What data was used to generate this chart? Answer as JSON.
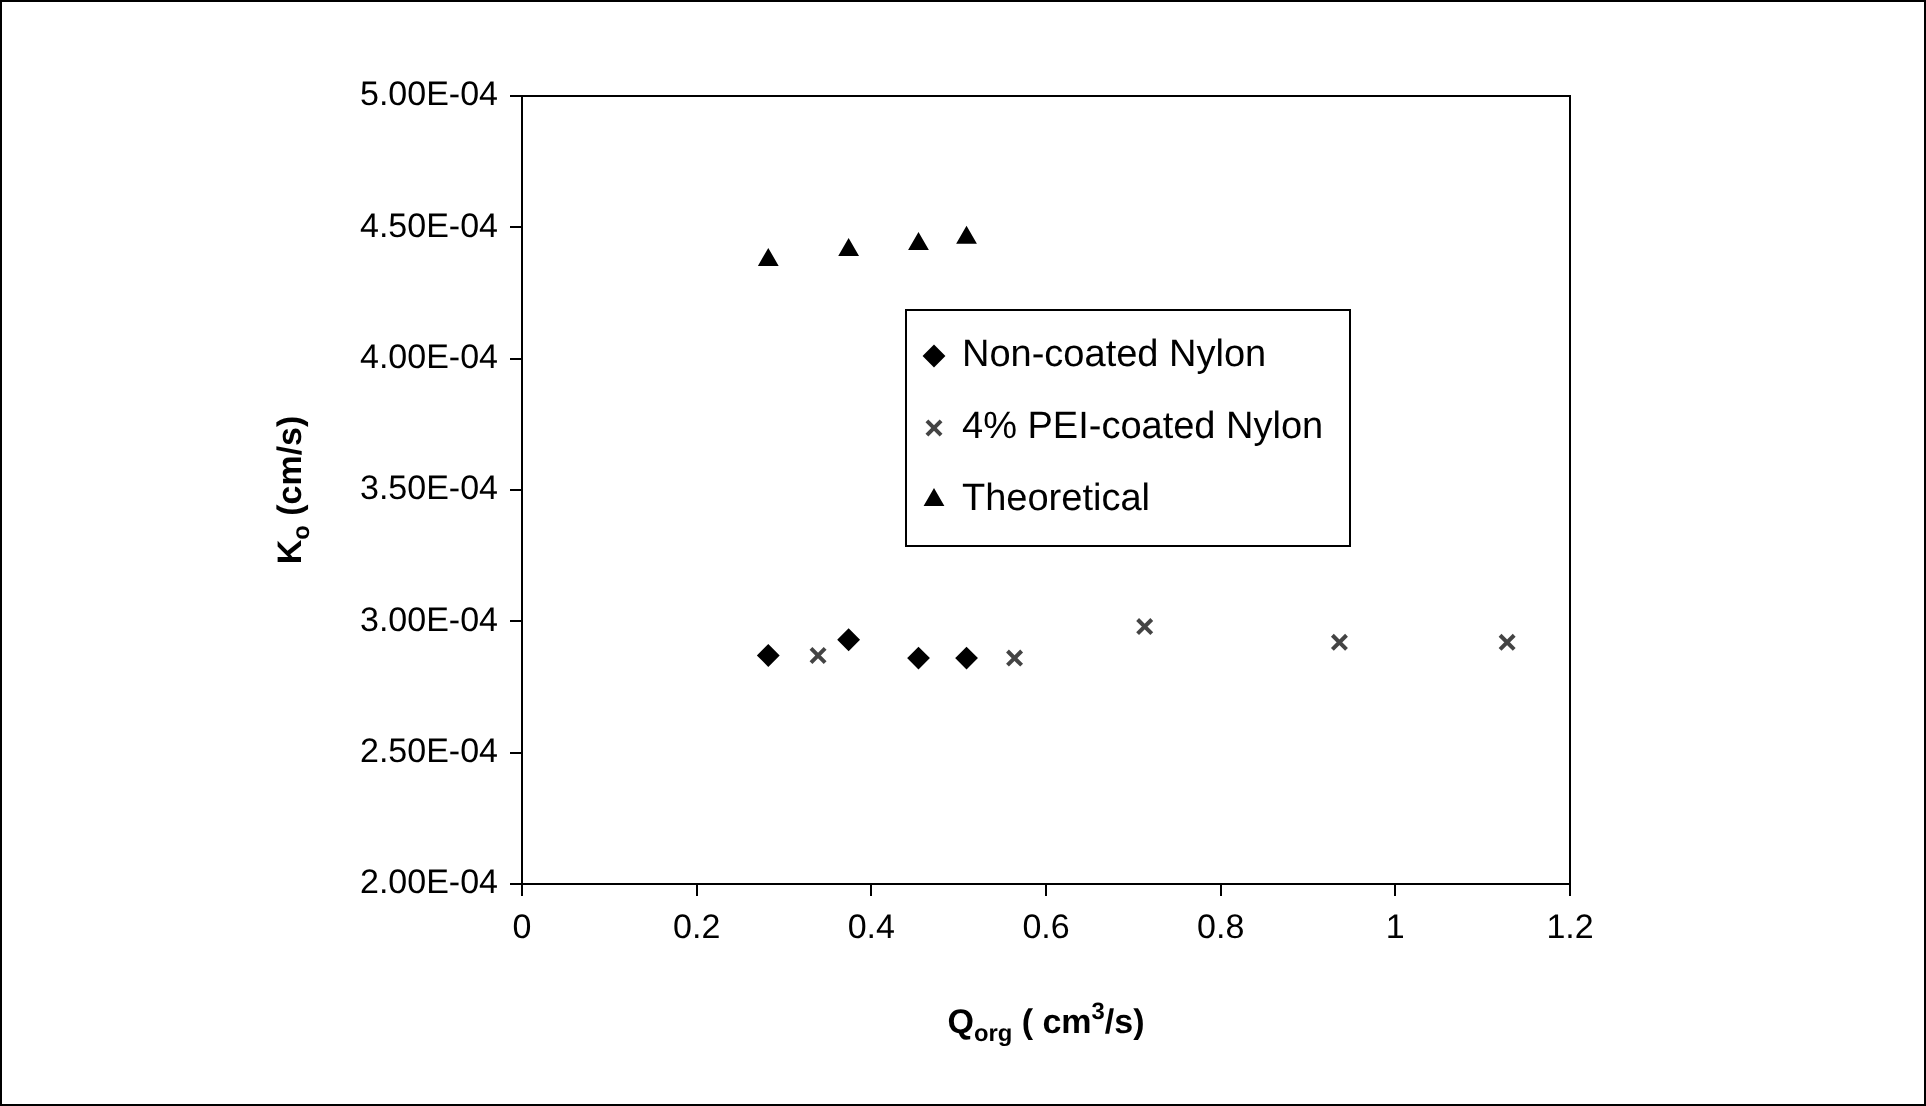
{
  "chart_data": {
    "type": "scatter",
    "xlabel": "Q$_{org}$ ( cm$^{3}$/s)",
    "ylabel": "K$_{o}$ (cm/s)",
    "xlim": [
      0,
      1.2
    ],
    "xticks": [
      0,
      0.2,
      0.4,
      0.6,
      0.8,
      1,
      1.2
    ],
    "ylim": [
      0.0002,
      0.0005
    ],
    "yticks": [
      {
        "value": 0.0002,
        "label": "2.00E-04"
      },
      {
        "value": 0.00025,
        "label": "2.50E-04"
      },
      {
        "value": 0.0003,
        "label": "3.00E-04"
      },
      {
        "value": 0.00035,
        "label": "3.50E-04"
      },
      {
        "value": 0.0004,
        "label": "4.00E-04"
      },
      {
        "value": 0.00045,
        "label": "4.50E-04"
      },
      {
        "value": 0.0005,
        "label": "5.00E-04"
      }
    ],
    "grid": false,
    "legend": "right",
    "series": [
      {
        "name": "Non-coated Nylon",
        "color": "#000000",
        "marker": "diamond",
        "x": [
          0.282,
          0.374,
          0.454,
          0.509
        ],
        "values": [
          0.000287,
          0.000293,
          0.000286,
          0.000286
        ]
      },
      {
        "name": "4% PEI-coated Nylon",
        "color": "#444444",
        "marker": "cross",
        "x": [
          0.339,
          0.564,
          0.713,
          0.936,
          1.128
        ],
        "values": [
          0.000287,
          0.000286,
          0.000298,
          0.000292,
          0.000292
        ]
      },
      {
        "name": "Theoretical",
        "color": "#000000",
        "marker": "triangle",
        "x": [
          0.282,
          0.374,
          0.454,
          0.509
        ],
        "values": [
          0.0004376,
          0.0004414,
          0.0004437,
          0.000446
        ]
      }
    ]
  }
}
